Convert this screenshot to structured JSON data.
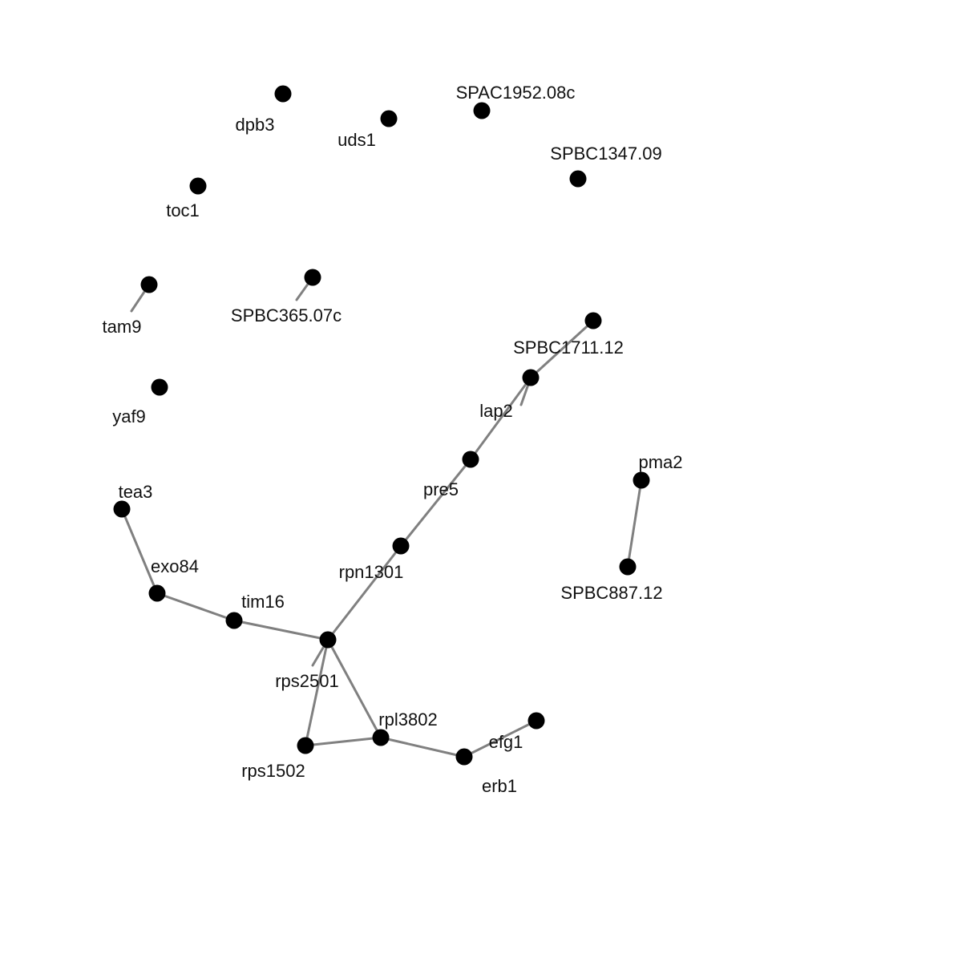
{
  "network": {
    "node_color": "#000000",
    "edge_color": "#808080",
    "nodes": [
      {
        "id": "dpb3",
        "label": "dpb3"
      },
      {
        "id": "uds1",
        "label": "uds1"
      },
      {
        "id": "SPAC1952.08c",
        "label": "SPAC1952.08c"
      },
      {
        "id": "SPBC1347.09",
        "label": "SPBC1347.09"
      },
      {
        "id": "toc1",
        "label": "toc1"
      },
      {
        "id": "tam9",
        "label": "tam9"
      },
      {
        "id": "SPBC365.07c",
        "label": "SPBC365.07c"
      },
      {
        "id": "SPBC1711.12",
        "label": "SPBC1711.12"
      },
      {
        "id": "lap2",
        "label": "lap2"
      },
      {
        "id": "yaf9",
        "label": "yaf9"
      },
      {
        "id": "pre5",
        "label": "pre5"
      },
      {
        "id": "pma2",
        "label": "pma2"
      },
      {
        "id": "tea3",
        "label": "tea3"
      },
      {
        "id": "rpn1301",
        "label": "rpn1301"
      },
      {
        "id": "SPBC887.12",
        "label": "SPBC887.12"
      },
      {
        "id": "exo84",
        "label": "exo84"
      },
      {
        "id": "tim16",
        "label": "tim16"
      },
      {
        "id": "rps2501",
        "label": "rps2501"
      },
      {
        "id": "rpl3802",
        "label": "rpl3802"
      },
      {
        "id": "efg1",
        "label": "efg1"
      },
      {
        "id": "rps1502",
        "label": "rps1502"
      },
      {
        "id": "erb1",
        "label": "erb1"
      }
    ],
    "edges": [
      {
        "source": "tam9",
        "target": "tam9"
      },
      {
        "source": "SPBC365.07c",
        "target": "SPBC365.07c"
      },
      {
        "source": "SPBC1711.12",
        "target": "lap2"
      },
      {
        "source": "lap2",
        "target": "lap2"
      },
      {
        "source": "lap2",
        "target": "pre5"
      },
      {
        "source": "pre5",
        "target": "rpn1301"
      },
      {
        "source": "rpn1301",
        "target": "rps2501"
      },
      {
        "source": "rps2501",
        "target": "rps2501"
      },
      {
        "source": "tea3",
        "target": "exo84"
      },
      {
        "source": "exo84",
        "target": "tim16"
      },
      {
        "source": "tim16",
        "target": "rps2501"
      },
      {
        "source": "rps2501",
        "target": "rps1502"
      },
      {
        "source": "rps2501",
        "target": "rpl3802"
      },
      {
        "source": "rps1502",
        "target": "rpl3802"
      },
      {
        "source": "rpl3802",
        "target": "erb1"
      },
      {
        "source": "erb1",
        "target": "efg1"
      },
      {
        "source": "pma2",
        "target": "SPBC887.12"
      }
    ]
  }
}
